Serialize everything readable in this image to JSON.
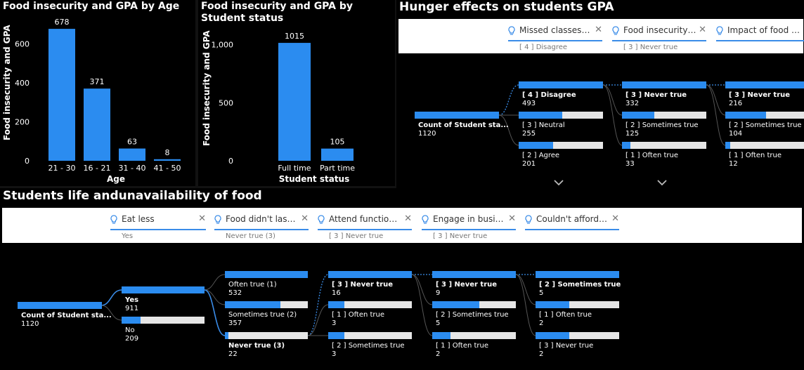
{
  "panels": {
    "age": {
      "title": "Food insecurity and GPA by Age",
      "ylabel": "Food insecurity and GPA",
      "xlabel": "Age"
    },
    "status": {
      "title": "Food insecurity and GPA by Student status",
      "ylabel": "Food insecurity and GPA",
      "xlabel": "Student status"
    },
    "hunger": {
      "title": "Hunger effects on students GPA",
      "slicers": [
        {
          "label": "Missed classes b...",
          "value": "[ 4 ] Disagree"
        },
        {
          "label": "Food insecurity a...",
          "value": "[ 3 ] Never true"
        },
        {
          "label": "Impact of food on...",
          "value": ""
        }
      ],
      "tree": {
        "root": {
          "label": "Count of Student sta...",
          "value": "1120"
        },
        "col1": [
          {
            "label": "[ 4 ] Disagree",
            "value": "493",
            "fill": 1.0,
            "bold": true
          },
          {
            "label": "[ 3 ] Neutral",
            "value": "255",
            "fill": 0.52
          },
          {
            "label": "[ 2 ] Agree",
            "value": "201",
            "fill": 0.41
          }
        ],
        "col2": [
          {
            "label": "[ 3 ] Never true",
            "value": "332",
            "fill": 1.0,
            "bold": true
          },
          {
            "label": "[ 2 ] Sometimes true",
            "value": "125",
            "fill": 0.38
          },
          {
            "label": "[ 1 ] Often true",
            "value": "33",
            "fill": 0.1
          }
        ],
        "col3": [
          {
            "label": "[ 3 ] Never true",
            "value": "216",
            "fill": 1.0,
            "bold": true
          },
          {
            "label": "[ 2 ] Sometimes true",
            "value": "104",
            "fill": 0.48
          },
          {
            "label": "[ 1 ] Often true",
            "value": "12",
            "fill": 0.06
          }
        ]
      }
    },
    "life": {
      "title": "Students life andunavailability of food",
      "slicers": [
        {
          "label": "Eat less",
          "value": "Yes"
        },
        {
          "label": "Food didn't last a...",
          "value": "Never true (3)"
        },
        {
          "label": "Attend functions ...",
          "value": "[ 3 ] Never true"
        },
        {
          "label": "Engage in busine...",
          "value": "[ 3 ] Never true"
        },
        {
          "label": "Couldn't afford to...",
          "value": ""
        }
      ],
      "tree": {
        "root": {
          "label": "Count of Student sta...",
          "value": "1120"
        },
        "col1": [
          {
            "label": "Yes",
            "value": "911",
            "fill": 1.0,
            "bold": true
          },
          {
            "label": "No",
            "value": "209",
            "fill": 0.23
          }
        ],
        "col2": [
          {
            "label": "Often true (1)",
            "value": "532",
            "fill": 1.0
          },
          {
            "label": "Sometimes true (2)",
            "value": "357",
            "fill": 0.67
          },
          {
            "label": "Never true (3)",
            "value": "22",
            "fill": 0.04,
            "bold": true
          }
        ],
        "col3": [
          {
            "label": "[ 3 ] Never true",
            "value": "16",
            "fill": 1.0,
            "bold": true
          },
          {
            "label": "[ 1 ] Often true",
            "value": "3",
            "fill": 0.19
          },
          {
            "label": "[ 2 ] Sometimes true",
            "value": "3",
            "fill": 0.19
          }
        ],
        "col4": [
          {
            "label": "[ 3 ] Never true",
            "value": "9",
            "fill": 1.0,
            "bold": true
          },
          {
            "label": "[ 2 ] Sometimes true",
            "value": "5",
            "fill": 0.56
          },
          {
            "label": "[ 1 ] Often true",
            "value": "2",
            "fill": 0.22
          }
        ],
        "col5": [
          {
            "label": "[ 2 ] Sometimes true",
            "value": "5",
            "fill": 1.0,
            "bold": true
          },
          {
            "label": "[ 1 ] Often true",
            "value": "2",
            "fill": 0.4
          },
          {
            "label": "[ 3 ] Never true",
            "value": "2",
            "fill": 0.4
          }
        ]
      }
    }
  },
  "colors": {
    "accent": "#2b8cf0",
    "track": "#e6e6e6",
    "background": "#000000"
  },
  "icons": {
    "slicer": "lightbulb-icon",
    "clear": "close-icon",
    "expand": "chevron-down-icon"
  },
  "chart_data": [
    {
      "type": "bar",
      "title": "Food insecurity and GPA by Age",
      "xlabel": "Age",
      "ylabel": "Food insecurity and GPA",
      "categories": [
        "21 - 30",
        "16 - 21",
        "31 - 40",
        "41 - 50"
      ],
      "values": [
        678,
        371,
        63,
        8
      ],
      "ylim": [
        0,
        700
      ],
      "yticks": [
        "0",
        "200",
        "400",
        "600"
      ],
      "yticks_values": [
        0,
        200,
        400,
        600
      ]
    },
    {
      "type": "bar",
      "title": "Food insecurity and GPA by Student status",
      "xlabel": "Student status",
      "ylabel": "Food insecurity and GPA",
      "categories": [
        "Full time",
        "Part time"
      ],
      "values": [
        1015,
        105
      ],
      "ylim": [
        0,
        1100
      ],
      "yticks": [
        "0",
        "500",
        "1,000"
      ],
      "yticks_values": [
        0,
        500,
        1000
      ]
    }
  ]
}
